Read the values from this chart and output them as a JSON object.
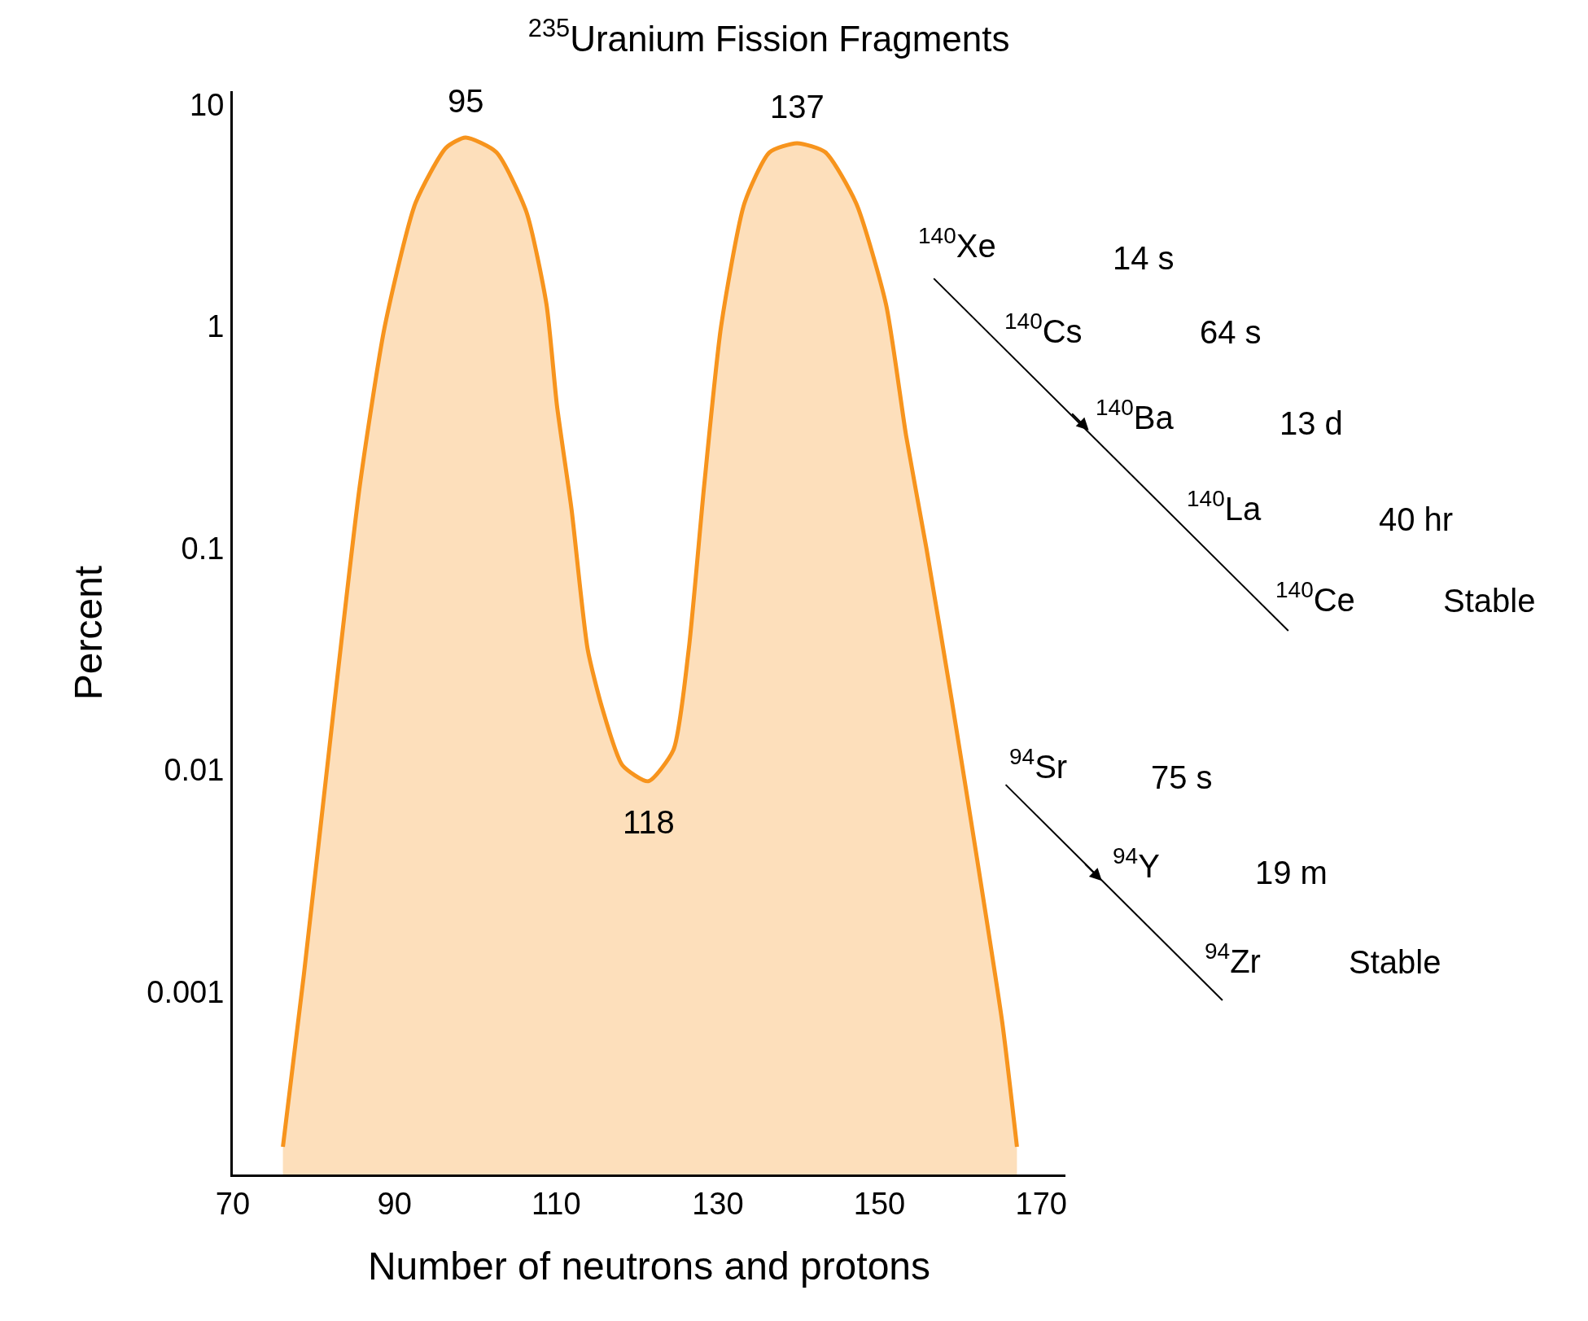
{
  "chart_data": {
    "type": "area",
    "title": "$^{235}$Uranium Fission Fragments",
    "xlabel": "Number of neutrons and protons",
    "ylabel": "Percent",
    "log": "y",
    "xlim": [
      70,
      173
    ],
    "ylim": [
      0.00015,
      11.5
    ],
    "xticks": [
      70,
      90,
      110,
      130,
      150,
      170
    ],
    "yticks": [
      0.001,
      0.01,
      0.1,
      1,
      10
    ],
    "series": [
      {
        "color": "#f7941d",
        "x": [
          76.2,
          78.8,
          82.5,
          85.7,
          88.8,
          92.6,
          96.4,
          98.8,
          102.6,
          106.3,
          108.8,
          110.1,
          111.9,
          113.9,
          115.7,
          118.2,
          121.4,
          124.5,
          126.4,
          128.3,
          130.4,
          133.3,
          136.4,
          139.8,
          143.3,
          147.1,
          150.8,
          153.3,
          155.8,
          158.9,
          162.1,
          165.2,
          167.0
        ],
        "values": [
          0.0002,
          0.0012,
          0.019,
          0.19,
          1.0,
          3.6,
          6.4,
          7.1,
          6.1,
          3.3,
          1.26,
          0.44,
          0.15,
          0.035,
          0.019,
          0.0105,
          0.0089,
          0.0123,
          0.035,
          0.19,
          1.0,
          3.6,
          6.1,
          6.7,
          6.1,
          3.6,
          1.26,
          0.32,
          0.1,
          0.021,
          0.0039,
          0.00072,
          0.0002
        ]
      }
    ],
    "annotations": [
      {
        "text": "95",
        "x": 98.8,
        "y": 7.1
      },
      {
        "text": "137",
        "x": 139.8,
        "y": 6.7
      },
      {
        "text": "118",
        "x": 121.4,
        "y": 0.0089
      },
      "$^{140}$Xe",
      "14 s",
      "$^{140}$Cs",
      "64 s",
      "$^{140}$Ba",
      "13 d",
      "$^{140}$La",
      "40 hr",
      "$^{140}$Ce",
      "Stable",
      "$^{94}$Sr",
      "75 s",
      "$^{94}$Y",
      "19 m",
      "$^{94}$Zr",
      "Stable"
    ]
  }
}
